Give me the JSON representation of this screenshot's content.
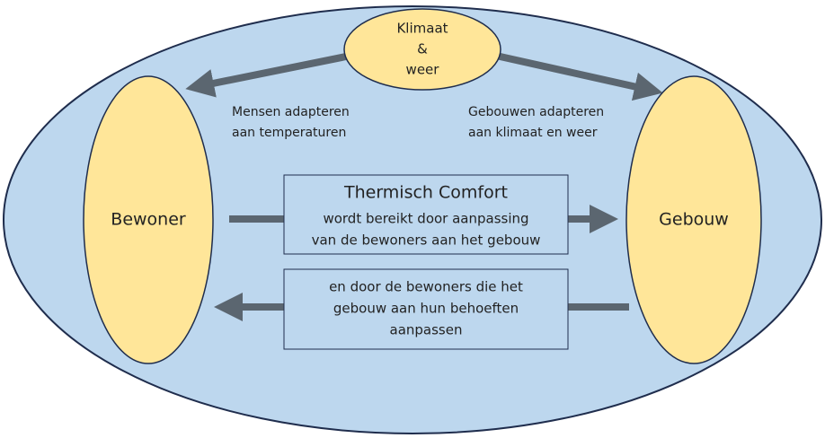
{
  "nodes": [
    {
      "lines": [
        "Klimaat",
        "&",
        "weer"
      ]
    },
    {
      "lines": [
        "Bewoner"
      ]
    },
    {
      "lines": [
        "Gebouw"
      ]
    }
  ],
  "labels": [
    {
      "lines": [
        "Mensen adapteren",
        "aan temperaturen"
      ]
    },
    {
      "lines": [
        "Gebouwen adapteren",
        "aan klimaat en weer"
      ]
    }
  ],
  "boxes": [
    {
      "title": "Thermisch Comfort",
      "lines": [
        "wordt bereikt door aanpassing",
        "van de bewoners aan het gebouw"
      ]
    },
    {
      "lines": [
        "en door de bewoners die het",
        "gebouw aan hun behoeften",
        "aanpassen"
      ]
    }
  ]
}
